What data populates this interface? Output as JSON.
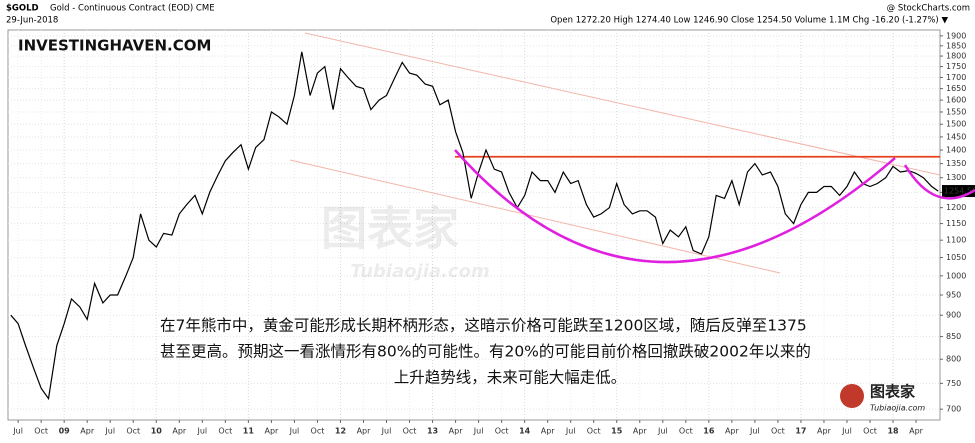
{
  "chart_data": {
    "type": "line",
    "title": "$GOLD",
    "subtitle": "Gold - Continuous Contract (EOD) CME",
    "date": "29-Jun-2018",
    "quote": "Open 1272.20 High 1274.40 Low 1246.90 Close 1254.50 Volume 1.1M Chg -16.20 (-1.27%) ▼",
    "source": "@ StockCharts.com",
    "watermark": "INVESTINGHAVEN.COM",
    "logo_text": "图表家",
    "logo_url": "Tubiaojia.com",
    "annotation_lines": [
      "在7年熊市中，黄金可能形成长期杯柄形态，这暗示价格可能跌至1200区域，随后反弹至1375",
      "甚至更高。预期这一看涨情形有80%的可能性。有20%的可能目前价格回撤跌破2002年以来的",
      "上升趋势线，未来可能大幅走低。"
    ],
    "last_value": 1254.5,
    "last_value_label": "1254.50",
    "resistance_level": 1375,
    "log_scale": true,
    "grid": true,
    "xlim": [
      2008.39,
      2018.51
    ],
    "ylim": [
      680,
      1930
    ],
    "xticks": [
      {
        "value": 2008.5,
        "label": "Jul"
      },
      {
        "value": 2008.75,
        "label": "Oct"
      },
      {
        "value": 2009.0,
        "label": "09"
      },
      {
        "value": 2009.25,
        "label": "Apr"
      },
      {
        "value": 2009.5,
        "label": "Jul"
      },
      {
        "value": 2009.75,
        "label": "Oct"
      },
      {
        "value": 2010.0,
        "label": "10"
      },
      {
        "value": 2010.25,
        "label": "Apr"
      },
      {
        "value": 2010.5,
        "label": "Jul"
      },
      {
        "value": 2010.75,
        "label": "Oct"
      },
      {
        "value": 2011.0,
        "label": "11"
      },
      {
        "value": 2011.25,
        "label": "Apr"
      },
      {
        "value": 2011.5,
        "label": "Jul"
      },
      {
        "value": 2011.75,
        "label": "Oct"
      },
      {
        "value": 2012.0,
        "label": "12"
      },
      {
        "value": 2012.25,
        "label": "Apr"
      },
      {
        "value": 2012.5,
        "label": "Jul"
      },
      {
        "value": 2012.75,
        "label": "Oct"
      },
      {
        "value": 2013.0,
        "label": "13"
      },
      {
        "value": 2013.25,
        "label": "Apr"
      },
      {
        "value": 2013.5,
        "label": "Jul"
      },
      {
        "value": 2013.75,
        "label": "Oct"
      },
      {
        "value": 2014.0,
        "label": "14"
      },
      {
        "value": 2014.25,
        "label": "Apr"
      },
      {
        "value": 2014.5,
        "label": "Jul"
      },
      {
        "value": 2014.75,
        "label": "Oct"
      },
      {
        "value": 2015.0,
        "label": "15"
      },
      {
        "value": 2015.25,
        "label": "Apr"
      },
      {
        "value": 2015.5,
        "label": "Jul"
      },
      {
        "value": 2015.75,
        "label": "Oct"
      },
      {
        "value": 2016.0,
        "label": "16"
      },
      {
        "value": 2016.25,
        "label": "Apr"
      },
      {
        "value": 2016.5,
        "label": "Jul"
      },
      {
        "value": 2016.75,
        "label": "Oct"
      },
      {
        "value": 2017.0,
        "label": "17"
      },
      {
        "value": 2017.25,
        "label": "Apr"
      },
      {
        "value": 2017.5,
        "label": "Jul"
      },
      {
        "value": 2017.75,
        "label": "Oct"
      },
      {
        "value": 2018.0,
        "label": "18"
      },
      {
        "value": 2018.25,
        "label": "Apr"
      }
    ],
    "yticks": [
      700,
      750,
      800,
      850,
      900,
      950,
      1000,
      1050,
      1100,
      1150,
      1200,
      1250,
      1300,
      1350,
      1400,
      1450,
      1500,
      1550,
      1600,
      1650,
      1700,
      1750,
      1800,
      1850,
      1900
    ],
    "x": [
      2008.42,
      2008.5,
      2008.58,
      2008.67,
      2008.75,
      2008.83,
      2008.92,
      2009.0,
      2009.08,
      2009.17,
      2009.25,
      2009.33,
      2009.42,
      2009.5,
      2009.58,
      2009.67,
      2009.75,
      2009.83,
      2009.92,
      2010.0,
      2010.08,
      2010.17,
      2010.25,
      2010.33,
      2010.42,
      2010.5,
      2010.58,
      2010.67,
      2010.75,
      2010.83,
      2010.92,
      2011.0,
      2011.08,
      2011.17,
      2011.25,
      2011.33,
      2011.42,
      2011.5,
      2011.58,
      2011.67,
      2011.75,
      2011.83,
      2011.92,
      2012.0,
      2012.08,
      2012.17,
      2012.25,
      2012.33,
      2012.42,
      2012.5,
      2012.58,
      2012.67,
      2012.75,
      2012.83,
      2012.92,
      2013.0,
      2013.08,
      2013.17,
      2013.25,
      2013.33,
      2013.42,
      2013.5,
      2013.58,
      2013.67,
      2013.75,
      2013.83,
      2013.92,
      2014.0,
      2014.08,
      2014.17,
      2014.25,
      2014.33,
      2014.42,
      2014.5,
      2014.58,
      2014.67,
      2014.75,
      2014.83,
      2014.92,
      2015.0,
      2015.08,
      2015.17,
      2015.25,
      2015.33,
      2015.42,
      2015.5,
      2015.58,
      2015.67,
      2015.75,
      2015.83,
      2015.92,
      2016.0,
      2016.08,
      2016.17,
      2016.25,
      2016.33,
      2016.42,
      2016.5,
      2016.58,
      2016.67,
      2016.75,
      2016.83,
      2016.92,
      2017.0,
      2017.08,
      2017.17,
      2017.25,
      2017.33,
      2017.42,
      2017.5,
      2017.58,
      2017.67,
      2017.75,
      2017.83,
      2017.92,
      2018.0,
      2018.08,
      2018.17,
      2018.25,
      2018.33,
      2018.42,
      2018.49
    ],
    "series": [
      {
        "name": "$GOLD",
        "color": "#000000",
        "values": [
          900,
          880,
          830,
          780,
          740,
          720,
          830,
          880,
          940,
          920,
          890,
          980,
          930,
          950,
          950,
          1000,
          1050,
          1180,
          1100,
          1080,
          1120,
          1115,
          1180,
          1210,
          1240,
          1180,
          1250,
          1310,
          1360,
          1390,
          1420,
          1330,
          1410,
          1440,
          1550,
          1530,
          1500,
          1620,
          1820,
          1620,
          1720,
          1750,
          1560,
          1740,
          1700,
          1660,
          1650,
          1560,
          1600,
          1620,
          1690,
          1770,
          1720,
          1710,
          1670,
          1660,
          1580,
          1600,
          1470,
          1390,
          1230,
          1320,
          1400,
          1330,
          1320,
          1250,
          1200,
          1240,
          1320,
          1290,
          1290,
          1250,
          1320,
          1280,
          1290,
          1210,
          1170,
          1180,
          1200,
          1280,
          1210,
          1180,
          1190,
          1190,
          1170,
          1090,
          1130,
          1110,
          1140,
          1070,
          1060,
          1110,
          1240,
          1230,
          1290,
          1210,
          1320,
          1350,
          1310,
          1320,
          1270,
          1180,
          1150,
          1210,
          1250,
          1250,
          1270,
          1270,
          1240,
          1270,
          1320,
          1280,
          1270,
          1280,
          1300,
          1340,
          1320,
          1325,
          1315,
          1300,
          1270,
          1254.5
        ]
      }
    ]
  }
}
